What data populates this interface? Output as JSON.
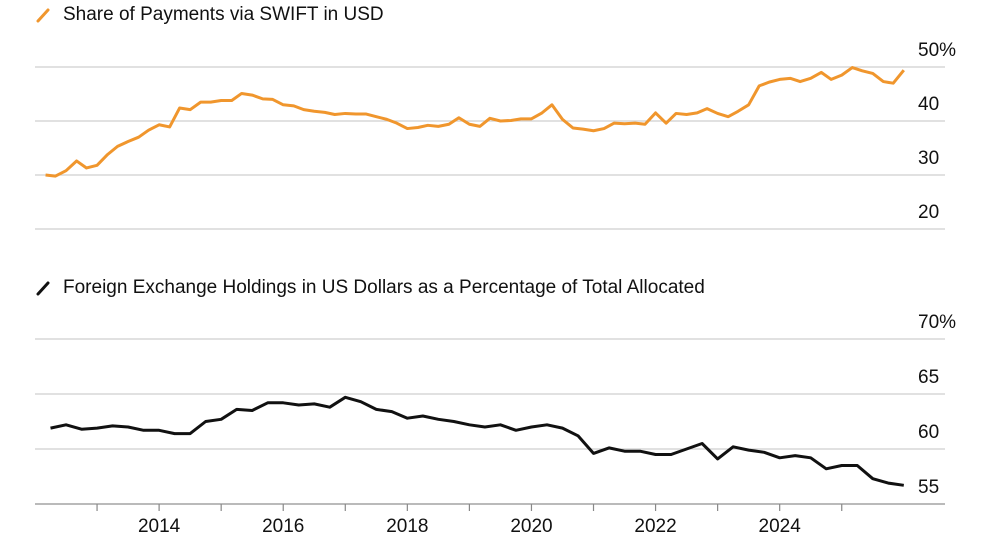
{
  "chart_data": [
    {
      "type": "line",
      "series": [
        {
          "name": "Share of Payments via SWIFT in USD",
          "color": "#f0962d",
          "values": [
            30.0,
            29.8,
            30.8,
            32.6,
            31.3,
            31.8,
            33.8,
            35.3,
            36.2,
            37.0,
            38.3,
            39.3,
            38.9,
            42.4,
            42.1,
            43.5,
            43.5,
            43.8,
            43.8,
            45.1,
            44.8,
            44.1,
            44.0,
            43.0,
            42.8,
            42.1,
            41.8,
            41.6,
            41.2,
            41.4,
            41.3,
            41.3,
            40.8,
            40.3,
            39.6,
            38.6,
            38.8,
            39.2,
            39.0,
            39.4,
            40.6,
            39.4,
            39.0,
            40.5,
            40.0,
            40.1,
            40.4,
            40.4,
            41.5,
            43.0,
            40.3,
            38.7,
            38.5,
            38.2,
            38.6,
            39.6,
            39.5,
            39.6,
            39.4,
            41.5,
            39.6,
            41.4,
            41.2,
            41.5,
            42.3,
            41.4,
            40.8,
            41.8,
            43.0,
            46.5,
            47.2,
            47.7,
            47.9,
            47.3,
            47.9,
            49.0,
            47.7,
            48.5,
            49.9,
            49.3,
            48.8,
            47.3,
            47.0,
            49.4
          ]
        }
      ],
      "x": [
        2012.17,
        2012.33,
        2012.5,
        2012.67,
        2012.83,
        2013.0,
        2013.17,
        2013.33,
        2013.5,
        2013.67,
        2013.83,
        2014.0,
        2014.17,
        2014.33,
        2014.5,
        2014.67,
        2014.83,
        2015.0,
        2015.17,
        2015.33,
        2015.5,
        2015.67,
        2015.83,
        2016.0,
        2016.17,
        2016.33,
        2016.5,
        2016.67,
        2016.83,
        2017.0,
        2017.17,
        2017.33,
        2017.5,
        2017.67,
        2017.83,
        2018.0,
        2018.17,
        2018.33,
        2018.5,
        2018.67,
        2018.83,
        2019.0,
        2019.17,
        2019.33,
        2019.5,
        2019.67,
        2019.83,
        2020.0,
        2020.17,
        2020.33,
        2020.5,
        2020.67,
        2020.83,
        2021.0,
        2021.17,
        2021.33,
        2021.5,
        2021.67,
        2021.83,
        2022.0,
        2022.17,
        2022.33,
        2022.5,
        2022.67,
        2022.83,
        2023.0,
        2023.17,
        2023.33,
        2023.5,
        2023.67,
        2023.83,
        2024.0,
        2024.17,
        2024.33,
        2024.5,
        2024.67,
        2024.83,
        2025.0,
        2025.17,
        2025.33,
        2025.5,
        2025.67,
        2025.83,
        2026.0
      ],
      "xlim": [
        2012,
        2026.1
      ],
      "ylim": [
        20,
        50
      ],
      "yticks": [
        20,
        30,
        40,
        {
          "value": 50,
          "label": "50%"
        }
      ],
      "grid": true
    },
    {
      "type": "line",
      "series": [
        {
          "name": "Foreign Exchange Holdings in US Dollars as a Percentage of Total Allocated",
          "color": "#111111",
          "values": [
            61.9,
            62.2,
            61.8,
            61.9,
            62.1,
            62.0,
            61.7,
            61.7,
            61.4,
            61.4,
            62.5,
            62.7,
            63.6,
            63.5,
            64.2,
            64.2,
            64.0,
            64.1,
            63.8,
            64.7,
            64.3,
            63.6,
            63.4,
            62.8,
            63.0,
            62.7,
            62.5,
            62.2,
            62.0,
            62.2,
            61.7,
            62.0,
            62.2,
            61.9,
            61.2,
            59.6,
            60.1,
            59.8,
            59.8,
            59.5,
            59.5,
            60.0,
            60.5,
            59.1,
            60.2,
            59.9,
            59.7,
            59.2,
            59.4,
            59.2,
            58.2,
            58.5,
            58.5,
            57.3,
            56.9,
            56.7
          ]
        }
      ],
      "x": [
        2012.25,
        2012.5,
        2012.75,
        2013.0,
        2013.25,
        2013.5,
        2013.75,
        2014.0,
        2014.25,
        2014.5,
        2014.75,
        2015.0,
        2015.25,
        2015.5,
        2015.75,
        2016.0,
        2016.25,
        2016.5,
        2016.75,
        2017.0,
        2017.25,
        2017.5,
        2017.75,
        2018.0,
        2018.25,
        2018.5,
        2018.75,
        2019.0,
        2019.25,
        2019.5,
        2019.75,
        2020.0,
        2020.25,
        2020.5,
        2020.75,
        2021.0,
        2021.25,
        2021.5,
        2021.75,
        2022.0,
        2022.25,
        2022.5,
        2022.75,
        2023.0,
        2023.25,
        2023.5,
        2023.75,
        2024.0,
        2024.25,
        2024.5,
        2024.75,
        2025.0,
        2025.25,
        2025.5,
        2025.75,
        2026.0
      ],
      "xlim": [
        2012,
        2026.1
      ],
      "ylim": [
        55,
        70
      ],
      "yticks": [
        55,
        60,
        65,
        {
          "value": 70,
          "label": "70%"
        }
      ],
      "xticks": [
        2014,
        2016,
        2018,
        2020,
        2022,
        2024
      ],
      "xminorticks": [
        2013,
        2015,
        2017,
        2019,
        2021,
        2023,
        2025
      ],
      "grid": true
    }
  ]
}
